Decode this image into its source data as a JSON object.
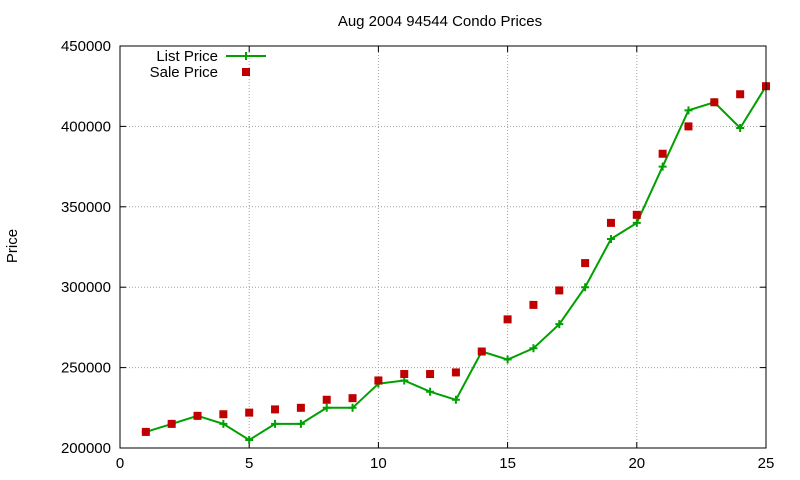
{
  "chart_data": {
    "type": "line",
    "title": "Aug 2004 94544 Condo Prices",
    "xlabel": "",
    "ylabel": "Price",
    "xlim": [
      0,
      25
    ],
    "ylim": [
      200000,
      450000
    ],
    "xticks": [
      0,
      5,
      10,
      15,
      20,
      25
    ],
    "yticks": [
      200000,
      250000,
      300000,
      350000,
      400000,
      450000
    ],
    "grid": true,
    "legend_position": "top-left",
    "series": [
      {
        "name": "List Price",
        "style": "line-with-plus-markers",
        "color": "#00a000",
        "x": [
          1,
          2,
          3,
          4,
          5,
          6,
          7,
          8,
          9,
          10,
          11,
          12,
          13,
          14,
          15,
          16,
          17,
          18,
          19,
          20,
          21,
          22,
          23,
          24,
          25
        ],
        "y": [
          210000,
          215000,
          220000,
          215000,
          205000,
          215000,
          215000,
          225000,
          225000,
          240000,
          242000,
          235000,
          230000,
          260000,
          255000,
          262000,
          277000,
          300000,
          330000,
          340000,
          375000,
          410000,
          415000,
          399000,
          425000
        ]
      },
      {
        "name": "Sale Price",
        "style": "square-markers",
        "color": "#c00000",
        "x": [
          1,
          2,
          3,
          4,
          5,
          6,
          7,
          8,
          9,
          10,
          11,
          12,
          13,
          14,
          15,
          16,
          17,
          18,
          19,
          20,
          21,
          22,
          23,
          24,
          25
        ],
        "y": [
          210000,
          215000,
          220000,
          221000,
          222000,
          224000,
          225000,
          230000,
          231000,
          242000,
          246000,
          246000,
          247000,
          260000,
          280000,
          289000,
          298000,
          315000,
          340000,
          345000,
          383000,
          400000,
          415000,
          420000,
          425000
        ]
      }
    ]
  }
}
